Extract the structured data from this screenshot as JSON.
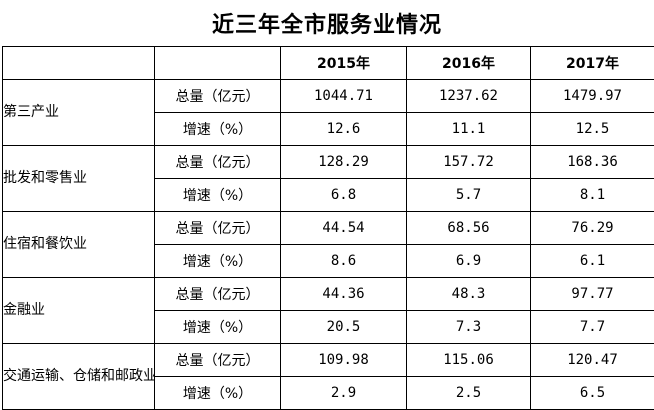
{
  "title": "近三年全市服务业情况",
  "years": [
    "2015年",
    "2016年",
    "2017年"
  ],
  "metric_labels": {
    "total": "总量（亿元）",
    "growth": "增速（%）"
  },
  "categories": [
    {
      "name": "第三产业",
      "total": [
        "1044.71",
        "1237.62",
        "1479.97"
      ],
      "growth": [
        "12.6",
        "11.1",
        "12.5"
      ]
    },
    {
      "name": "批发和零售业",
      "total": [
        "128.29",
        "157.72",
        "168.36"
      ],
      "growth": [
        "6.8",
        "5.7",
        "8.1"
      ]
    },
    {
      "name": "住宿和餐饮业",
      "total": [
        "44.54",
        "68.56",
        "76.29"
      ],
      "growth": [
        "8.6",
        "6.9",
        "6.1"
      ]
    },
    {
      "name": "金融业",
      "total": [
        "44.36",
        "48.3",
        "97.77"
      ],
      "growth": [
        "20.5",
        "7.3",
        "7.7"
      ]
    },
    {
      "name": "交通运输、仓储和邮政业",
      "total": [
        "109.98",
        "115.06",
        "120.47"
      ],
      "growth": [
        "2.9",
        "2.5",
        "6.5"
      ]
    }
  ],
  "chart_data": {
    "type": "table",
    "title": "近三年全市服务业情况",
    "columns": [
      "2015年",
      "2016年",
      "2017年"
    ],
    "rows": [
      {
        "category": "第三产业",
        "metric": "总量（亿元）",
        "values": [
          1044.71,
          1237.62,
          1479.97
        ]
      },
      {
        "category": "第三产业",
        "metric": "增速（%）",
        "values": [
          12.6,
          11.1,
          12.5
        ]
      },
      {
        "category": "批发和零售业",
        "metric": "总量（亿元）",
        "values": [
          128.29,
          157.72,
          168.36
        ]
      },
      {
        "category": "批发和零售业",
        "metric": "增速（%）",
        "values": [
          6.8,
          5.7,
          8.1
        ]
      },
      {
        "category": "住宿和餐饮业",
        "metric": "总量（亿元）",
        "values": [
          44.54,
          68.56,
          76.29
        ]
      },
      {
        "category": "住宿和餐饮业",
        "metric": "增速（%）",
        "values": [
          8.6,
          6.9,
          6.1
        ]
      },
      {
        "category": "金融业",
        "metric": "总量（亿元）",
        "values": [
          44.36,
          48.3,
          97.77
        ]
      },
      {
        "category": "金融业",
        "metric": "增速（%）",
        "values": [
          20.5,
          7.3,
          7.7
        ]
      },
      {
        "category": "交通运输、仓储和邮政业",
        "metric": "总量（亿元）",
        "values": [
          109.98,
          115.06,
          120.47
        ]
      },
      {
        "category": "交通运输、仓储和邮政业",
        "metric": "增速（%）",
        "values": [
          2.9,
          2.5,
          6.5
        ]
      }
    ]
  }
}
